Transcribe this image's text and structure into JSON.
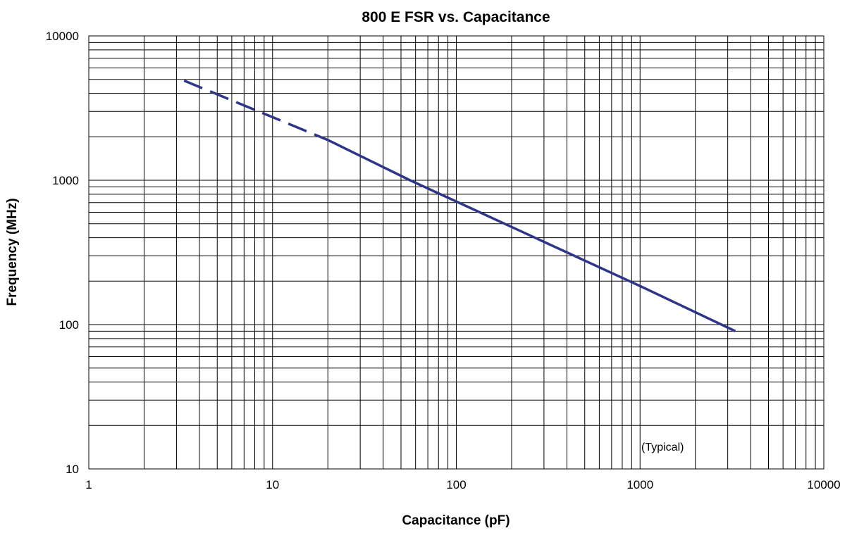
{
  "chart_data": {
    "type": "line",
    "title": "800 E FSR vs. Capacitance",
    "xlabel": "Capacitance (pF)",
    "ylabel": "Frequency (MHz)",
    "x_scale": "log",
    "y_scale": "log",
    "xlim": [
      1,
      10000
    ],
    "ylim": [
      10,
      10000
    ],
    "x_ticks": [
      "1",
      "10",
      "100",
      "1000",
      "10000"
    ],
    "y_ticks": [
      "10",
      "100",
      "1000",
      "10000"
    ],
    "grid": true,
    "legend": "none",
    "annotation": "(Typical)",
    "line_color": "#2e3687",
    "series": [
      {
        "points": [
          {
            "x": 3.3,
            "y": 4900,
            "style": "dashed"
          },
          {
            "x": 20,
            "y": 1900,
            "style": "solid"
          },
          {
            "x": 56,
            "y": 1000,
            "style": "solid"
          },
          {
            "x": 1000,
            "y": 185,
            "style": "solid"
          },
          {
            "x": 3300,
            "y": 90,
            "style": "solid"
          }
        ]
      }
    ]
  }
}
